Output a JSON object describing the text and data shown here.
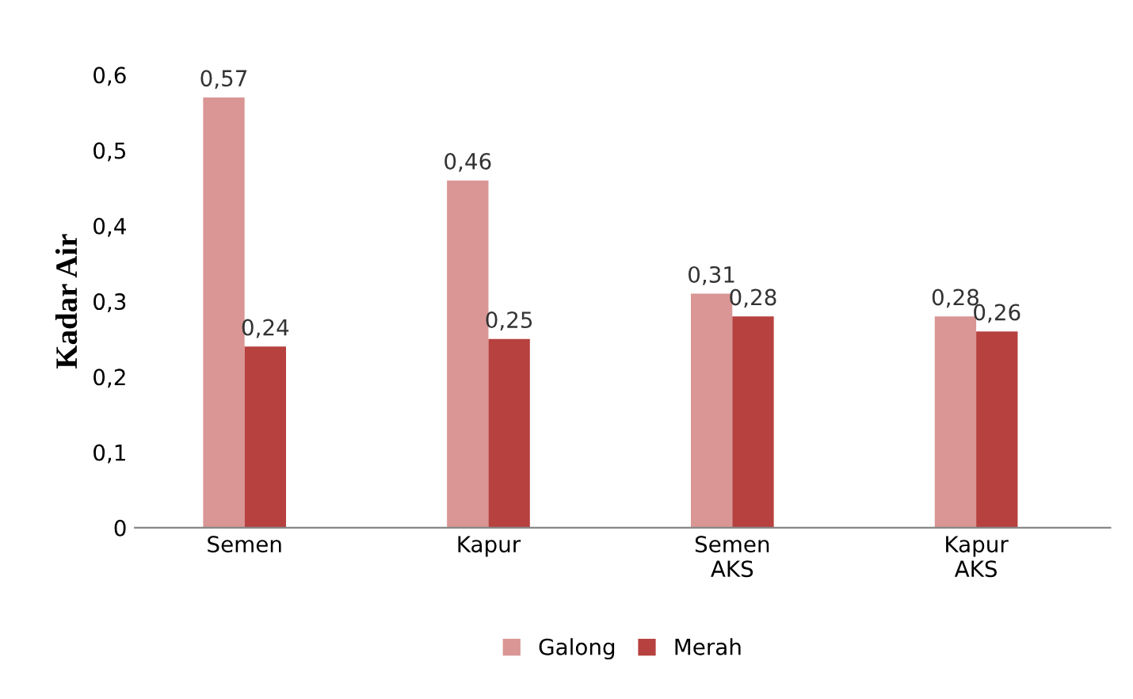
{
  "chart_data": {
    "type": "bar",
    "ylabel": "Kadar Air",
    "categories": [
      "Semen",
      "Kapur",
      "Semen\nAKS",
      "Kapur\nAKS"
    ],
    "series": [
      {
        "name": "Galong",
        "color": "#d99694",
        "values": [
          0.57,
          0.46,
          0.31,
          0.28
        ],
        "value_labels": [
          "0,57",
          "0,46",
          "0,31",
          "0,28"
        ]
      },
      {
        "name": "Merah",
        "color": "#b6413f",
        "values": [
          0.24,
          0.25,
          0.28,
          0.26
        ],
        "value_labels": [
          "0,24",
          "0,25",
          "0,28",
          "0,26"
        ]
      }
    ],
    "ylim": [
      0,
      0.6
    ],
    "yticks": [
      {
        "value": 0,
        "label": "0"
      },
      {
        "value": 0.1,
        "label": "0,1"
      },
      {
        "value": 0.2,
        "label": "0,2"
      },
      {
        "value": 0.3,
        "label": "0,3"
      },
      {
        "value": 0.4,
        "label": "0,4"
      },
      {
        "value": 0.5,
        "label": "0,5"
      },
      {
        "value": 0.6,
        "label": "0,6"
      }
    ],
    "grid": false,
    "legend": "bottom"
  }
}
